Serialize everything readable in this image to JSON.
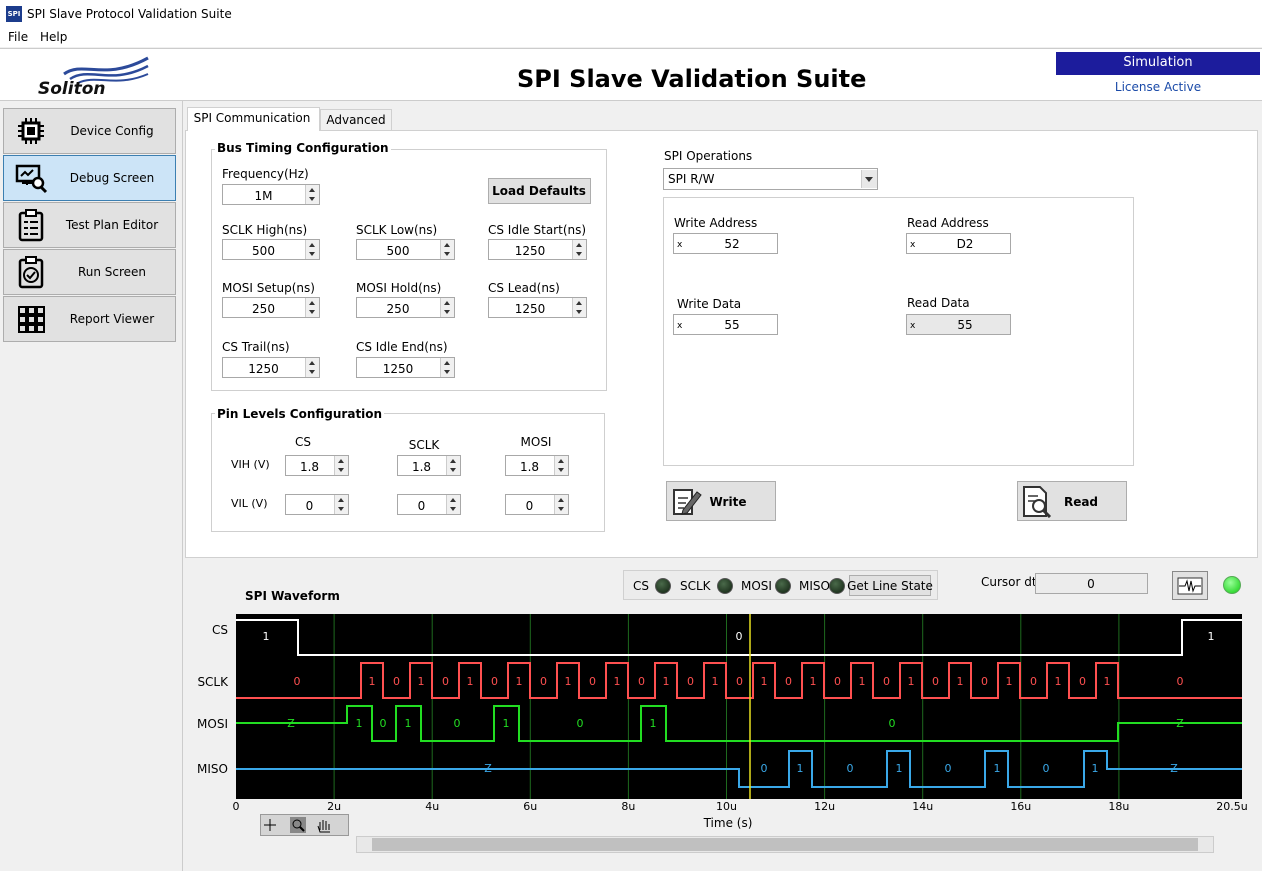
{
  "window": {
    "icon": "SPI",
    "title": "SPI Slave Protocol Validation Suite"
  },
  "menu": [
    "File",
    "Help"
  ],
  "header": {
    "logo": "Soliton",
    "title": "SPI Slave Validation Suite",
    "mode": "Simulation",
    "license": "License Active"
  },
  "nav": [
    "Device Config",
    "Debug Screen",
    "Test Plan Editor",
    "Run Screen",
    "Report Viewer"
  ],
  "tabs": [
    "SPI Communication",
    "Advanced"
  ],
  "bus_timing": {
    "title": "Bus Timing Configuration",
    "button": "Load Defaults",
    "fields": [
      {
        "label": "Frequency(Hz)",
        "value": "1M"
      },
      {
        "label": "SCLK High(ns)",
        "value": 500
      },
      {
        "label": "SCLK Low(ns)",
        "value": 500
      },
      {
        "label": "CS Idle Start(ns)",
        "value": 1250
      },
      {
        "label": "MOSI Setup(ns)",
        "value": 250
      },
      {
        "label": "MOSI Hold(ns)",
        "value": 250
      },
      {
        "label": "CS Lead(ns)",
        "value": 1250
      },
      {
        "label": "CS Trail(ns)",
        "value": 1250
      },
      {
        "label": "CS Idle End(ns)",
        "value": 1250
      }
    ]
  },
  "pin_levels": {
    "title": "Pin Levels Configuration",
    "columns": [
      "CS",
      "SCLK",
      "MOSI"
    ],
    "rows": [
      {
        "label": "VIH (V)",
        "values": [
          1.8,
          1.8,
          1.8
        ]
      },
      {
        "label": "VIL (V)",
        "values": [
          0,
          0,
          0
        ]
      }
    ]
  },
  "spi_operations": {
    "label": "SPI Operations",
    "selected": "SPI R/W",
    "fields": [
      {
        "label": "Write Address",
        "radix": "x",
        "value": "52"
      },
      {
        "label": "Read Address",
        "radix": "x",
        "value": "D2"
      },
      {
        "label": "Write Data",
        "radix": "x",
        "value": "55"
      },
      {
        "label": "Read Data",
        "radix": "x",
        "value": "55"
      }
    ],
    "write_button": "Write",
    "read_button": "Read"
  },
  "line_state": {
    "pins": [
      "CS",
      "SCLK",
      "MOSI",
      "MISO"
    ],
    "button": "Get Line State"
  },
  "cursor": {
    "label": "Cursor dt",
    "value": 0
  },
  "waveform": {
    "title": "SPI Waveform",
    "x_label": "Time (s)",
    "x_ticks": [
      "0",
      "2u",
      "4u",
      "6u",
      "8u",
      "10u",
      "12u",
      "14u",
      "16u",
      "18u",
      "20.5u"
    ],
    "signals": [
      {
        "name": "CS",
        "labels": [
          "1",
          "0",
          "1"
        ]
      },
      {
        "name": "SCLK",
        "labels": [
          "0",
          "1",
          "0",
          "1",
          "0",
          "1",
          "0",
          "1",
          "0",
          "1",
          "0",
          "1",
          "0",
          "1",
          "0",
          "1",
          "0",
          "1",
          "0",
          "1",
          "0",
          "1",
          "0",
          "1",
          "0",
          "1",
          "0",
          "1",
          "0",
          "1",
          "0",
          "1",
          "0"
        ]
      },
      {
        "name": "MOSI",
        "labels": [
          "Z",
          "1",
          "0",
          "1",
          "0",
          "1",
          "0",
          "1",
          "0",
          "Z"
        ]
      },
      {
        "name": "MISO",
        "labels": [
          "Z",
          "0",
          "1",
          "0",
          "1",
          "0",
          "1",
          "0",
          "1",
          "Z"
        ]
      }
    ]
  }
}
